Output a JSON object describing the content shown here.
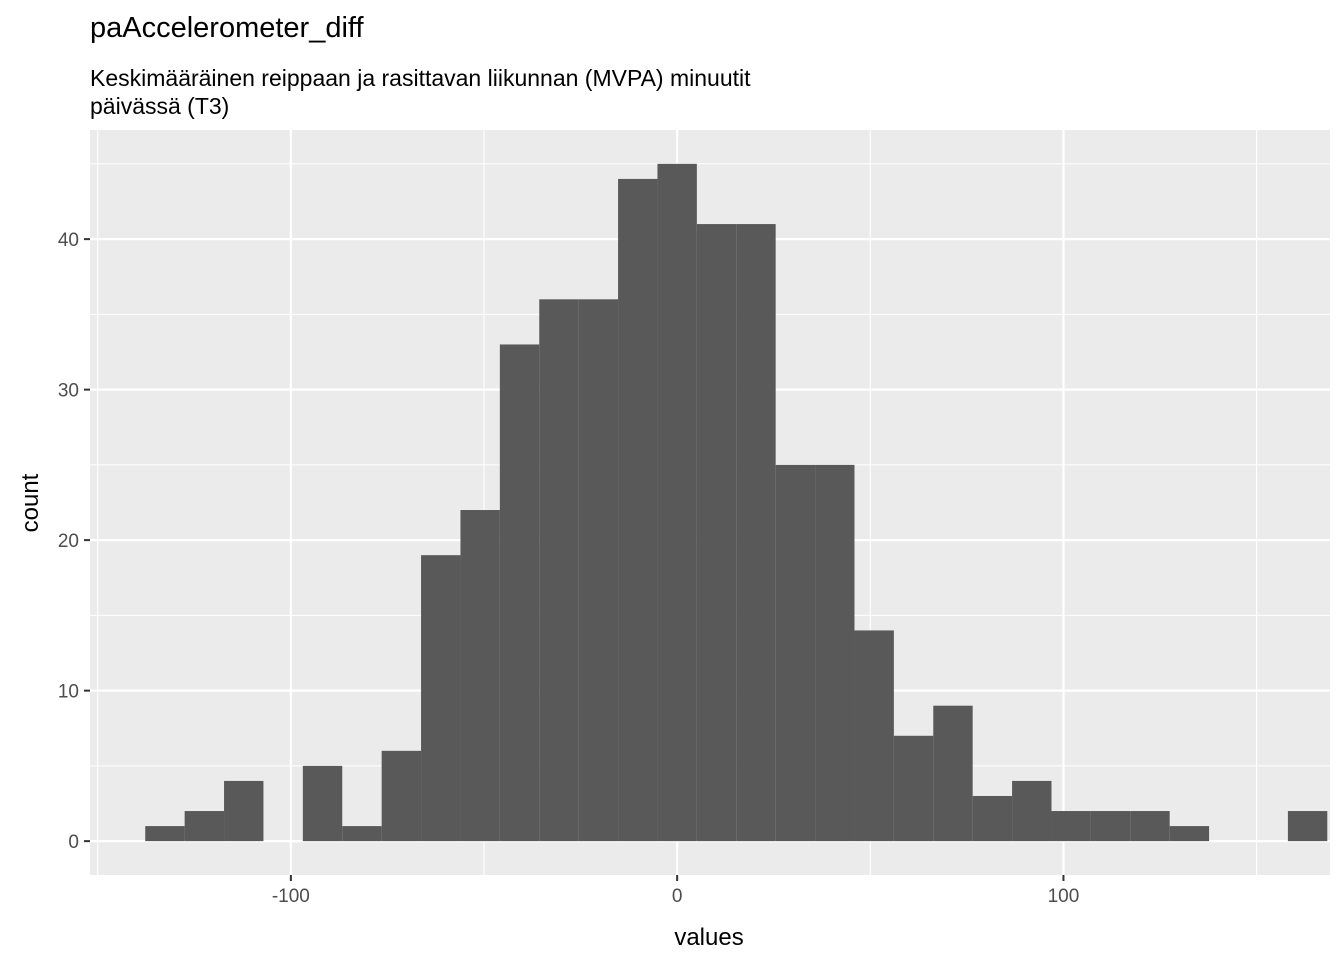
{
  "chart_data": {
    "type": "bar",
    "title": "paAccelerometer_diff",
    "subtitle_lines": [
      "Keskimääräinen reippaan ja rasittavan liikunnan (MVPA) minuutit",
      "päivässä (T3)"
    ],
    "xlabel": "values",
    "ylabel": "count",
    "xlim": [
      -152,
      169
    ],
    "ylim": [
      -2.25,
      47.25
    ],
    "x_ticks": [
      -100,
      0,
      100
    ],
    "x_tick_labels": [
      "-100",
      "0",
      "100"
    ],
    "y_ticks": [
      0,
      10,
      20,
      30,
      40
    ],
    "y_tick_labels": [
      "0",
      "10",
      "20",
      "30",
      "40"
    ],
    "grid": true,
    "bin_width": 10.2,
    "bin_starts": [
      -137.7,
      -127.5,
      -117.3,
      -107.1,
      -96.9,
      -86.7,
      -76.5,
      -66.3,
      -56.1,
      -45.9,
      -35.7,
      -25.5,
      -15.3,
      -5.1,
      5.1,
      15.3,
      25.5,
      35.7,
      45.9,
      56.1,
      66.3,
      76.5,
      86.7,
      96.9,
      107.1,
      117.3,
      127.5,
      137.7,
      147.9,
      158.1
    ],
    "values": [
      1,
      2,
      4,
      0,
      5,
      1,
      6,
      19,
      22,
      33,
      36,
      36,
      44,
      45,
      41,
      41,
      25,
      25,
      14,
      7,
      9,
      3,
      4,
      2,
      2,
      2,
      1,
      0,
      0,
      2
    ],
    "colors": {
      "bar": "#595959",
      "panel": "#ebebeb",
      "grid": "#ffffff",
      "tick": "#333333"
    }
  }
}
